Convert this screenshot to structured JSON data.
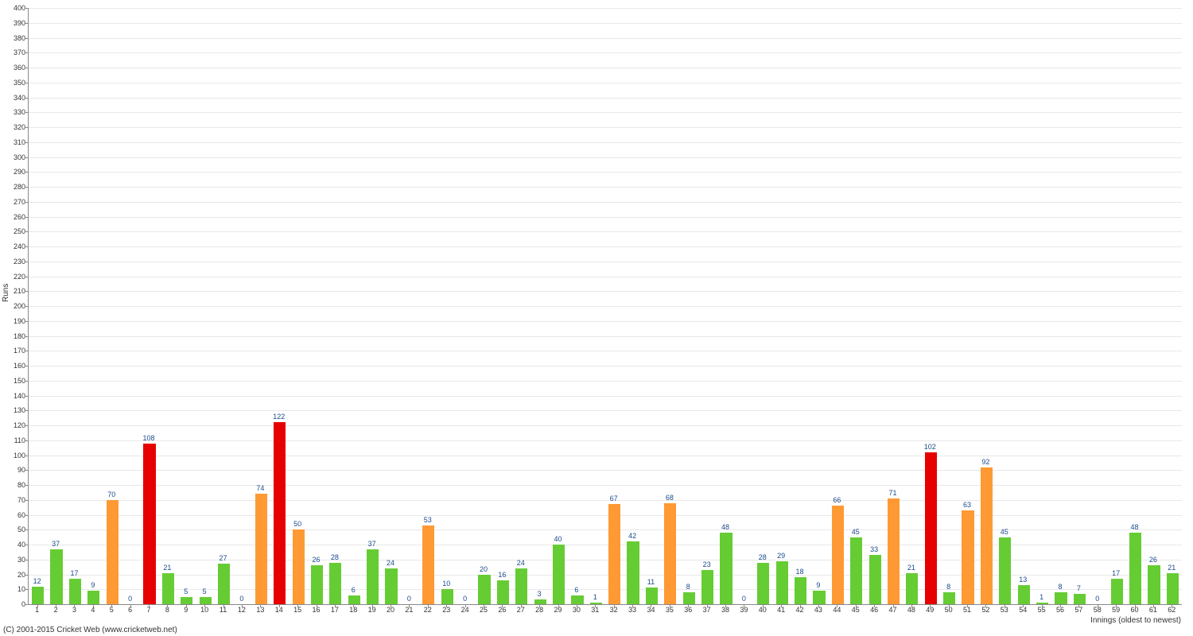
{
  "chart": {
    "type": "bar",
    "ylabel": "Runs",
    "xlabel": "Innings (oldest to newest)",
    "ylim": [
      0,
      400
    ],
    "ytick_step": 10,
    "background_color": "#ffffff",
    "grid_color": "#e8e8e8",
    "axis_color": "#888888",
    "label_color": "#333333",
    "value_label_color": "#1a4b8c",
    "bar_width_ratio": 0.65,
    "tick_fontsize": 9,
    "colors": {
      "low": "#66cc33",
      "mid": "#ff9933",
      "high": "#e60000"
    },
    "values": [
      12,
      37,
      17,
      9,
      70,
      0,
      108,
      21,
      5,
      5,
      27,
      0,
      74,
      122,
      50,
      26,
      28,
      6,
      37,
      24,
      0,
      53,
      10,
      0,
      20,
      16,
      24,
      3,
      40,
      6,
      1,
      67,
      42,
      11,
      68,
      8,
      23,
      48,
      0,
      28,
      29,
      18,
      9,
      66,
      45,
      33,
      71,
      21,
      102,
      8,
      63,
      92,
      45,
      13,
      1,
      8,
      7,
      0,
      17,
      48,
      26,
      21
    ]
  },
  "copyright": "(C) 2001-2015 Cricket Web (www.cricketweb.net)"
}
